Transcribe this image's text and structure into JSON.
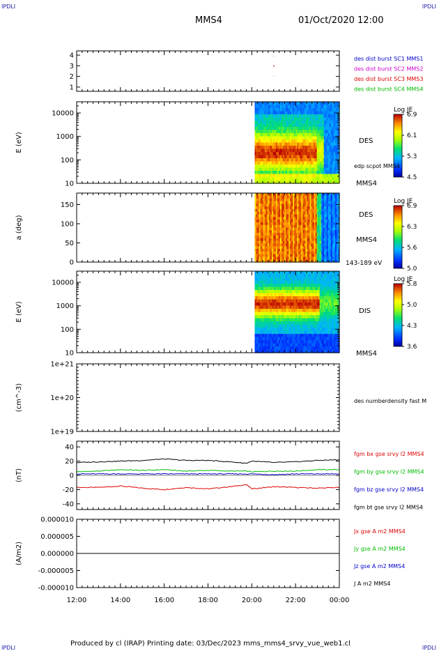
{
  "header": {
    "corner_label": "IPDLI",
    "spacecraft": "MMS4",
    "datetime": "01/Oct/2020 12:00"
  },
  "footer": {
    "text": "Produced by cl (IRAP)   Printing date: 03/Dec/2023   mms_mms4_srvy_vue_web1.cl"
  },
  "colors": {
    "blue": "#0000cc",
    "magenta": "#cc00cc",
    "red": "#dd0000",
    "green": "#00bb00",
    "black": "#000000"
  },
  "chart_data": [
    {
      "type": "scatter",
      "panel": "burst-flags",
      "yticks": [
        "1",
        "2",
        "3",
        "4"
      ],
      "ylim": [
        0.6,
        4.4
      ],
      "legend": [
        {
          "label": "des dist burst SC1 MMS1",
          "color": "#0000cc"
        },
        {
          "label": "des dist burst SC2 MMS2",
          "color": "#cc00cc"
        },
        {
          "label": "des dist burst SC3 MMS3",
          "color": "#dd0000"
        },
        {
          "label": "des dist burst SC4 MMS4",
          "color": "#00bb00"
        }
      ],
      "points": [
        {
          "x": "21:00",
          "y": 3,
          "color": "#dd0000"
        }
      ]
    },
    {
      "type": "heatmap",
      "panel": "des-energy-spectrogram",
      "ylabel": "E (eV)",
      "yscale": "log",
      "yticks": [
        "10",
        "100",
        "1000",
        "10000"
      ],
      "ylim": [
        10,
        30000
      ],
      "side_label": "DES",
      "side_note": "edp scpot MMS4",
      "spacecraft_label": "MMS4",
      "data_start": "20:08",
      "colorbar": {
        "title": "Log JE",
        "ticks": [
          "6.9",
          "6.1",
          "5.3",
          "4.5"
        ]
      }
    },
    {
      "type": "heatmap",
      "panel": "des-pitch-angle",
      "ylabel": "a (deg)",
      "yticks": [
        "0",
        "50",
        "100",
        "150"
      ],
      "ylim": [
        0,
        180
      ],
      "side_label": "DES",
      "spacecraft_label": "MMS4",
      "energy_range": "143-189 eV",
      "data_start": "20:08",
      "colorbar": {
        "title": "Log JE",
        "ticks": [
          "6.9",
          "6.3",
          "5.6",
          "5.0"
        ]
      }
    },
    {
      "type": "heatmap",
      "panel": "dis-energy-spectrogram",
      "ylabel": "E (eV)",
      "yscale": "log",
      "yticks": [
        "10",
        "100",
        "1000",
        "10000"
      ],
      "ylim": [
        10,
        30000
      ],
      "side_label": "DIS",
      "spacecraft_label": "MMS4",
      "data_start": "20:08",
      "colorbar": {
        "title": "Log JE",
        "ticks": [
          "5.8",
          "5.0",
          "4.3",
          "3.6"
        ]
      }
    },
    {
      "type": "line",
      "panel": "density",
      "ylabel": "(cm^-3)",
      "yscale": "log",
      "yticks": [
        "1e+19",
        "1e+20",
        "1e+21"
      ],
      "legend": [
        {
          "label": "des numberdensity fast M",
          "color": "#000000"
        }
      ],
      "series": []
    },
    {
      "type": "line",
      "panel": "magnetic-field",
      "ylabel": "(nT)",
      "yticks": [
        "-40",
        "-20",
        "0",
        "20",
        "40"
      ],
      "ylim": [
        -48,
        48
      ],
      "legend": [
        {
          "label": "fgm bx gse srvy l2 MMS4",
          "color": "#dd0000"
        },
        {
          "label": "fgm by gse srvy l2 MMS4",
          "color": "#00bb00"
        },
        {
          "label": "fgm bz gse srvy l2 MMS4",
          "color": "#0000cc"
        },
        {
          "label": "fgm bt gse srvy l2 MMS4",
          "color": "#000000"
        }
      ],
      "x": [
        "12:00",
        "13:00",
        "14:00",
        "15:00",
        "16:00",
        "17:00",
        "18:00",
        "19:00",
        "19:45",
        "20:00",
        "21:00",
        "22:00",
        "23:00",
        "00:00"
      ],
      "series": [
        {
          "label": "fgm bx gse srvy l2 MMS4",
          "color": "#dd0000",
          "values": [
            -17,
            -17,
            -15,
            -18,
            -20,
            -17,
            -19,
            -16,
            -13,
            -19,
            -16,
            -17,
            -18,
            -17
          ]
        },
        {
          "label": "fgm by gse srvy l2 MMS4",
          "color": "#00bb00",
          "values": [
            5,
            6,
            8,
            7,
            8,
            6,
            7,
            6,
            6,
            5,
            6,
            6,
            8,
            8
          ]
        },
        {
          "label": "fgm bz gse srvy l2 MMS4",
          "color": "#0000cc",
          "values": [
            2,
            2,
            2,
            2,
            2,
            2,
            2,
            2,
            2,
            2,
            1,
            2,
            2,
            2
          ]
        },
        {
          "label": "fgm bt gse srvy l2 MMS4",
          "color": "#000000",
          "values": [
            18,
            19,
            20,
            21,
            23,
            21,
            21,
            19,
            17,
            20,
            18,
            19,
            21,
            22
          ]
        }
      ]
    },
    {
      "type": "line",
      "panel": "current-density",
      "ylabel": "(A/m2)",
      "yticks": [
        "-0.000010",
        "-0.000005",
        "0.000000",
        "0.000005",
        "0.000010"
      ],
      "ylim": [
        -1e-05,
        1e-05
      ],
      "legend": [
        {
          "label": "Jx gse A m2 MMS4",
          "color": "#dd0000"
        },
        {
          "label": "Jy gse A m2 MMS4",
          "color": "#00bb00"
        },
        {
          "label": "Jz gse A m2 MMS4",
          "color": "#0000cc"
        },
        {
          "label": "J A m2 MMS4",
          "color": "#000000"
        }
      ],
      "x": [
        "12:00",
        "00:00"
      ],
      "series": [
        {
          "label": "J A m2 MMS4",
          "color": "#000000",
          "values": [
            0,
            0
          ]
        }
      ]
    }
  ],
  "xaxis": {
    "ticks": [
      "12:00",
      "14:00",
      "16:00",
      "18:00",
      "20:00",
      "22:00",
      "00:00"
    ]
  }
}
